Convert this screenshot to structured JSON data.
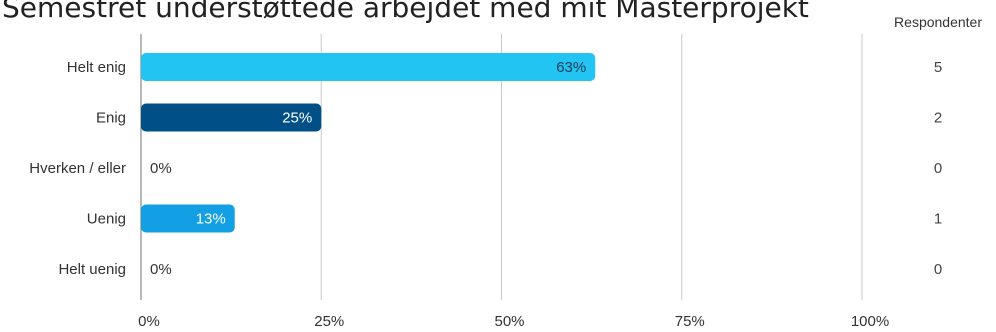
{
  "chart_data": {
    "type": "bar",
    "orientation": "horizontal",
    "title": "Semestret understøttede arbejdet med mit Masterprojekt",
    "categories": [
      "Helt enig",
      "Enig",
      "Hverken / eller",
      "Uenig",
      "Helt uenig"
    ],
    "values": [
      63,
      25,
      0,
      13,
      0
    ],
    "value_labels": [
      "63%",
      "25%",
      "0%",
      "13%",
      "0%"
    ],
    "respondents_header": "Respondenter",
    "respondents": [
      "5",
      "2",
      "0",
      "1",
      "0"
    ],
    "xticks": [
      0,
      25,
      50,
      75,
      100
    ],
    "xtick_labels": [
      "0%",
      "25%",
      "50%",
      "75%",
      "100%"
    ],
    "xlim": [
      0,
      100
    ],
    "grid": true,
    "bar_colors": [
      "#22c4f2",
      "#004f87",
      "#22c4f2",
      "#129fe3",
      "#22c4f2"
    ],
    "label_colors": [
      "#1a3a5a",
      "#ffffff",
      "#333333",
      "#ffffff",
      "#333333"
    ]
  }
}
